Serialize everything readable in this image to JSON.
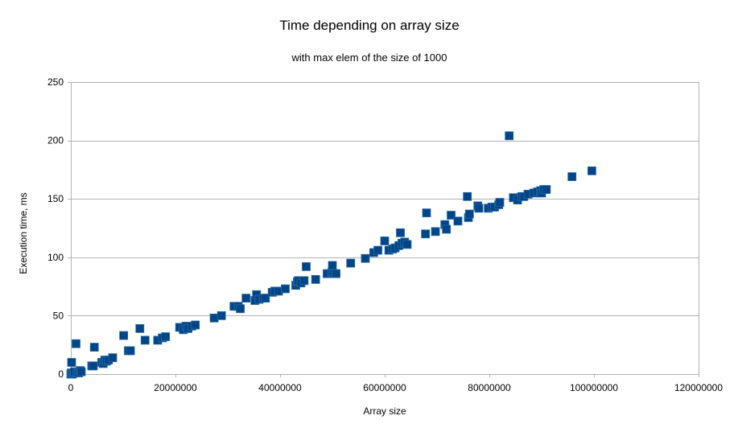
{
  "chart_data": {
    "type": "scatter",
    "title": "Time depending on array size",
    "subtitle": "with max elem of the size of 1000",
    "xlabel": "Array size",
    "ylabel": "Execution time, ms",
    "xlim": [
      0,
      120000000
    ],
    "ylim": [
      0,
      250
    ],
    "xticks": [
      "0",
      "20000000",
      "40000000",
      "60000000",
      "80000000",
      "100000000",
      "120000000"
    ],
    "yticks": [
      "0",
      "50",
      "100",
      "150",
      "200",
      "250"
    ],
    "grid": "horizontal",
    "legend": "none",
    "marker_color": "#004586",
    "points": [
      [
        0,
        0
      ],
      [
        100000,
        1
      ],
      [
        150000,
        10
      ],
      [
        300000,
        0
      ],
      [
        500000,
        1
      ],
      [
        700000,
        2
      ],
      [
        1000000,
        26
      ],
      [
        1200000,
        1
      ],
      [
        1500000,
        1
      ],
      [
        1800000,
        3
      ],
      [
        2000000,
        2
      ],
      [
        4000000,
        7
      ],
      [
        4300000,
        7
      ],
      [
        4500000,
        23
      ],
      [
        5900000,
        10
      ],
      [
        6200000,
        9
      ],
      [
        6500000,
        12
      ],
      [
        6800000,
        11
      ],
      [
        7200000,
        12
      ],
      [
        8000000,
        14
      ],
      [
        10100000,
        33
      ],
      [
        11000000,
        20
      ],
      [
        11400000,
        20
      ],
      [
        13200000,
        39
      ],
      [
        14200000,
        29
      ],
      [
        16600000,
        29
      ],
      [
        17500000,
        31
      ],
      [
        18100000,
        32
      ],
      [
        20800000,
        40
      ],
      [
        21500000,
        38
      ],
      [
        22000000,
        41
      ],
      [
        22400000,
        39
      ],
      [
        23100000,
        41
      ],
      [
        23800000,
        42
      ],
      [
        27400000,
        48
      ],
      [
        28800000,
        50
      ],
      [
        31200000,
        58
      ],
      [
        32000000,
        58
      ],
      [
        32400000,
        56
      ],
      [
        33500000,
        65
      ],
      [
        35200000,
        63
      ],
      [
        35500000,
        68
      ],
      [
        36000000,
        64
      ],
      [
        36800000,
        65
      ],
      [
        37200000,
        65
      ],
      [
        38500000,
        70
      ],
      [
        39000000,
        71
      ],
      [
        39700000,
        71
      ],
      [
        41000000,
        73
      ],
      [
        43000000,
        76
      ],
      [
        43300000,
        79
      ],
      [
        43500000,
        80
      ],
      [
        44000000,
        78
      ],
      [
        44600000,
        80
      ],
      [
        45000000,
        92
      ],
      [
        46800000,
        81
      ],
      [
        49000000,
        86
      ],
      [
        49900000,
        87
      ],
      [
        50000000,
        93
      ],
      [
        50300000,
        86
      ],
      [
        50700000,
        86
      ],
      [
        53500000,
        95
      ],
      [
        56300000,
        99
      ],
      [
        57900000,
        104
      ],
      [
        58700000,
        106
      ],
      [
        60000000,
        114
      ],
      [
        60800000,
        106
      ],
      [
        61500000,
        107
      ],
      [
        62000000,
        108
      ],
      [
        62700000,
        110
      ],
      [
        63000000,
        121
      ],
      [
        63300000,
        112
      ],
      [
        63800000,
        113
      ],
      [
        64300000,
        111
      ],
      [
        67800000,
        120
      ],
      [
        68000000,
        138
      ],
      [
        69700000,
        122
      ],
      [
        71500000,
        128
      ],
      [
        71800000,
        124
      ],
      [
        72700000,
        136
      ],
      [
        74000000,
        131
      ],
      [
        75800000,
        152
      ],
      [
        76000000,
        134
      ],
      [
        76200000,
        137
      ],
      [
        77800000,
        144
      ],
      [
        78000000,
        142
      ],
      [
        79800000,
        142
      ],
      [
        80500000,
        143
      ],
      [
        81000000,
        143
      ],
      [
        81800000,
        145
      ],
      [
        82000000,
        147
      ],
      [
        83800000,
        204
      ],
      [
        84600000,
        151
      ],
      [
        85400000,
        149
      ],
      [
        86200000,
        152
      ],
      [
        86600000,
        152
      ],
      [
        87400000,
        154
      ],
      [
        88500000,
        155
      ],
      [
        89200000,
        156
      ],
      [
        89800000,
        157
      ],
      [
        90000000,
        155
      ],
      [
        90400000,
        158
      ],
      [
        90900000,
        158
      ],
      [
        95800000,
        169
      ],
      [
        99600000,
        174
      ]
    ]
  }
}
